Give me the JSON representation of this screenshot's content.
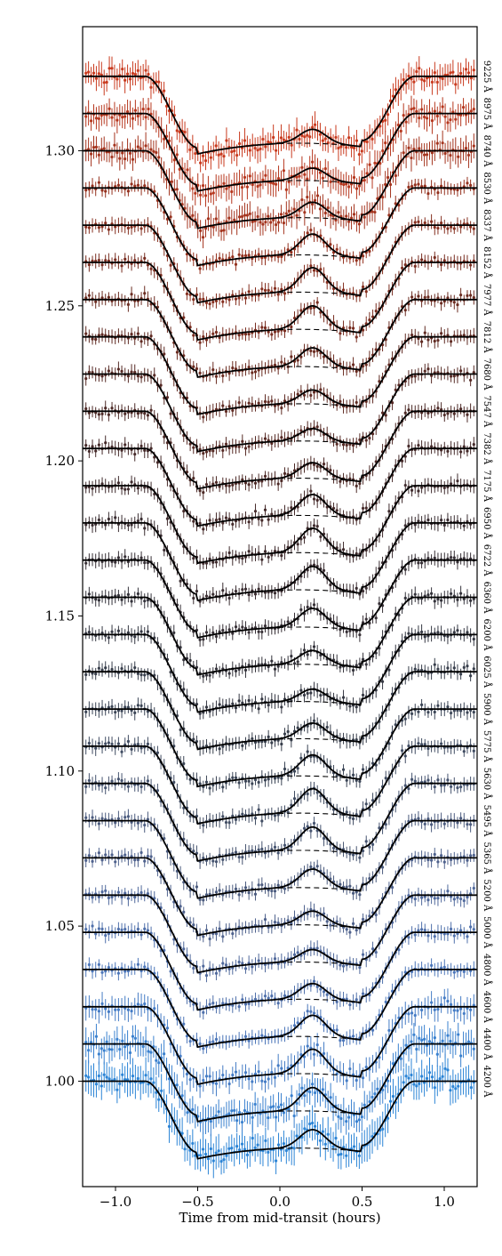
{
  "chart_data": {
    "type": "line",
    "title": "",
    "xlabel": "Time from mid-transit (hours)",
    "ylabel": "",
    "xlim": [
      -1.2,
      1.2
    ],
    "ylim": [
      0.966,
      1.34
    ],
    "x_ticks": [
      -1.0,
      -0.5,
      0.0,
      0.5,
      1.0
    ],
    "x_tick_labels": [
      "−1.0",
      "−0.5",
      "0.0",
      "0.5",
      "1.0"
    ],
    "y_ticks": [
      1.0,
      1.05,
      1.1,
      1.15,
      1.2,
      1.25,
      1.3
    ],
    "y_tick_labels": [
      "1.00",
      "1.05",
      "1.10",
      "1.15",
      "1.20",
      "1.25",
      "1.30"
    ],
    "grid": false,
    "ingress_start": -0.82,
    "full_transit_start": -0.5,
    "full_transit_end": 0.5,
    "egress_end": 0.82,
    "transit_depth": 0.023,
    "offset_step": 0.012,
    "spot_bump_center": 0.2,
    "series": [
      {
        "label": "4200 Å",
        "baseline": 1.0,
        "color": "#2b84d6"
      },
      {
        "label": "4400 Å",
        "baseline": 1.012,
        "color": "#3a81cf"
      },
      {
        "label": "4600 Å",
        "baseline": 1.024,
        "color": "#457cc5"
      },
      {
        "label": "4800 Å",
        "baseline": 1.036,
        "color": "#4c76b9"
      },
      {
        "label": "5000 Å",
        "baseline": 1.048,
        "color": "#4f70ab"
      },
      {
        "label": "5200 Å",
        "baseline": 1.06,
        "color": "#50699c"
      },
      {
        "label": "5365 Å",
        "baseline": 1.072,
        "color": "#4f628d"
      },
      {
        "label": "5495 Å",
        "baseline": 1.084,
        "color": "#4b5b7e"
      },
      {
        "label": "5630 Å",
        "baseline": 1.096,
        "color": "#465470"
      },
      {
        "label": "5775 Å",
        "baseline": 1.108,
        "color": "#404c62"
      },
      {
        "label": "5900 Å",
        "baseline": 1.12,
        "color": "#3b4556"
      },
      {
        "label": "6025 Å",
        "baseline": 1.132,
        "color": "#373e4b"
      },
      {
        "label": "6200 Å",
        "baseline": 1.144,
        "color": "#353843"
      },
      {
        "label": "6360 Å",
        "baseline": 1.156,
        "color": "#34333b"
      },
      {
        "label": "6722 Å",
        "baseline": 1.168,
        "color": "#362f35"
      },
      {
        "label": "6950 Å",
        "baseline": 1.18,
        "color": "#3a2d31"
      },
      {
        "label": "7175 Å",
        "baseline": 1.192,
        "color": "#3f2b2d"
      },
      {
        "label": "7382 Å",
        "baseline": 1.204,
        "color": "#452a2a"
      },
      {
        "label": "7547 Å",
        "baseline": 1.216,
        "color": "#4d2a27"
      },
      {
        "label": "7680 Å",
        "baseline": 1.228,
        "color": "#562a25"
      },
      {
        "label": "7812 Å",
        "baseline": 1.24,
        "color": "#602b23"
      },
      {
        "label": "7977 Å",
        "baseline": 1.252,
        "color": "#6b2c21"
      },
      {
        "label": "8152 Å",
        "baseline": 1.264,
        "color": "#782d20"
      },
      {
        "label": "8337 Å",
        "baseline": 1.276,
        "color": "#852f1f"
      },
      {
        "label": "8530 Å",
        "baseline": 1.288,
        "color": "#94311e"
      },
      {
        "label": "8740 Å",
        "baseline": 1.3,
        "color": "#a4341e"
      },
      {
        "label": "8975 Å",
        "baseline": 1.312,
        "color": "#b6371e"
      },
      {
        "label": "9225 Å",
        "baseline": 1.324,
        "color": "#c93b1f"
      }
    ],
    "model_color": "#000000",
    "noise_model_color": "#000000"
  }
}
